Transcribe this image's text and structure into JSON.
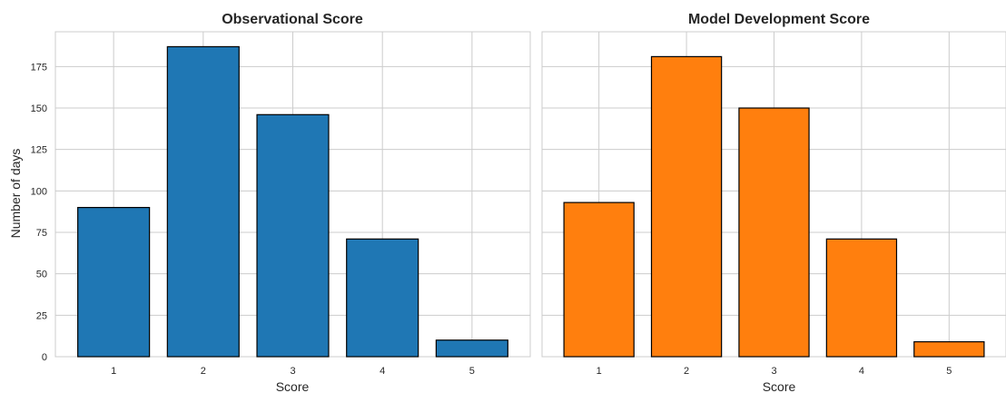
{
  "chart_data": [
    {
      "type": "bar",
      "title": "Observational Score",
      "xlabel": "Score",
      "ylabel": "Number of days",
      "categories": [
        "1",
        "2",
        "3",
        "4",
        "5"
      ],
      "values": [
        90,
        187,
        146,
        71,
        10
      ],
      "ylim": [
        0,
        196
      ],
      "yticks": [
        0,
        25,
        50,
        75,
        100,
        125,
        150,
        175
      ],
      "color": "#1f77b4",
      "grid": true
    },
    {
      "type": "bar",
      "title": "Model Development Score",
      "xlabel": "Score",
      "ylabel": "",
      "categories": [
        "1",
        "2",
        "3",
        "4",
        "5"
      ],
      "values": [
        93,
        181,
        150,
        71,
        9
      ],
      "ylim": [
        0,
        196
      ],
      "yticks": [
        0,
        25,
        50,
        75,
        100,
        125,
        150,
        175
      ],
      "color": "#ff7f0e",
      "grid": true
    }
  ]
}
